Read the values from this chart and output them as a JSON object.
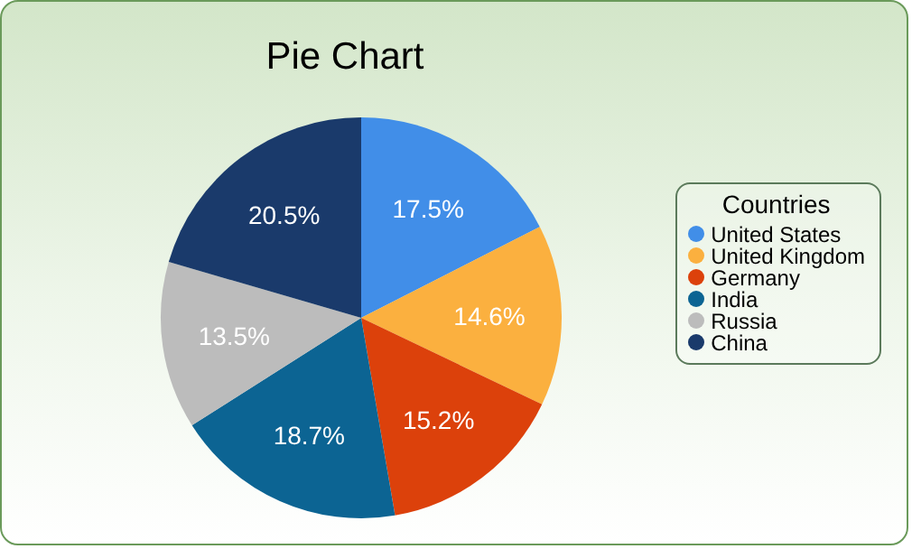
{
  "chart_data": {
    "type": "pie",
    "title": "Pie Chart",
    "legend_title": "Countries",
    "legend": "right",
    "categories": [
      "United States",
      "United Kingdom",
      "Germany",
      "India",
      "Russia",
      "China"
    ],
    "values": [
      17.5,
      14.6,
      15.2,
      18.7,
      13.5,
      20.5
    ],
    "value_labels": [
      "17.5%",
      "14.6%",
      "15.2%",
      "18.7%",
      "13.5%",
      "20.5%"
    ],
    "colors": [
      "#418ee8",
      "#fbb03f",
      "#dc410b",
      "#0c6493",
      "#bcbcbc",
      "#1a3a6b"
    ]
  }
}
